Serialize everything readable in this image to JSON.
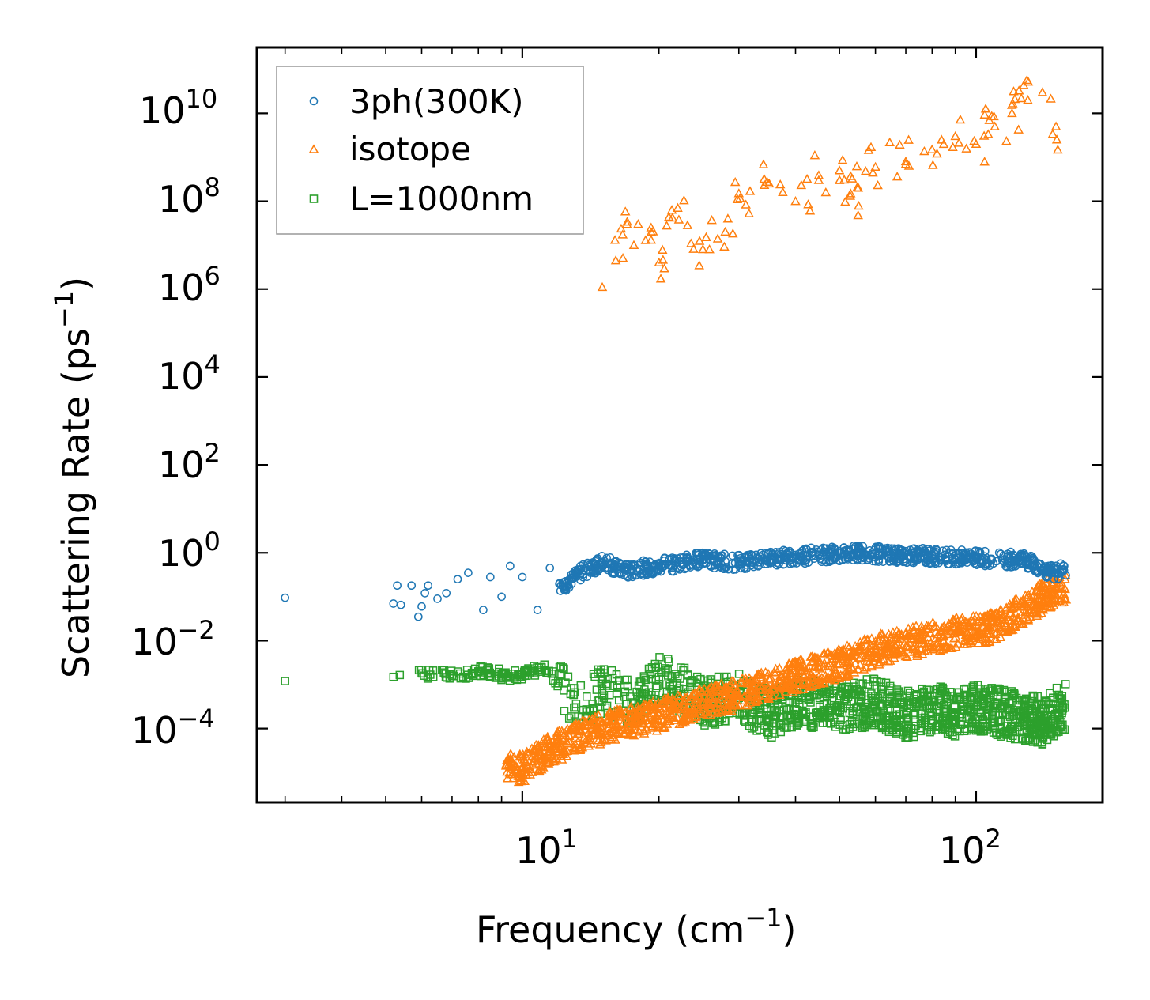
{
  "chart_data": {
    "type": "scatter",
    "xscale": "log",
    "yscale": "log",
    "xlabel": "Frequency (cm",
    "xlabel_sup": "−1",
    "xlabel_close": ")",
    "ylabel": "Scattering Rate (ps",
    "ylabel_sup": "−1",
    "ylabel_close": ")",
    "xlim": [
      2.6,
      190
    ],
    "ylim_exp": [
      -5.68,
      11.5
    ],
    "x_tick_labels": [
      {
        "base": "10",
        "exp": "1",
        "value": 10
      },
      {
        "base": "10",
        "exp": "2",
        "value": 100
      }
    ],
    "y_tick_labels": [
      {
        "base": "10",
        "exp": "10",
        "value": 10
      },
      {
        "base": "10",
        "exp": "8",
        "value": 8
      },
      {
        "base": "10",
        "exp": "6",
        "value": 6
      },
      {
        "base": "10",
        "exp": "4",
        "value": 4
      },
      {
        "base": "10",
        "exp": "2",
        "value": 2
      },
      {
        "base": "10",
        "exp": "0",
        "value": 0
      },
      {
        "base": "10",
        "exp": "−2",
        "value": -2
      },
      {
        "base": "10",
        "exp": "−4",
        "value": -4
      }
    ],
    "legend_position": "upper-left",
    "series": [
      {
        "name": "3ph(300K)",
        "marker": "circle",
        "color": "#1f77b4",
        "points": [
          [
            3.0,
            0.095
          ],
          [
            5.2,
            0.07
          ],
          [
            5.3,
            0.18
          ],
          [
            5.4,
            0.065
          ],
          [
            5.7,
            0.18
          ],
          [
            5.9,
            0.035
          ],
          [
            6.0,
            0.06
          ],
          [
            6.1,
            0.12
          ],
          [
            6.2,
            0.18
          ],
          [
            6.5,
            0.09
          ],
          [
            6.8,
            0.12
          ],
          [
            7.2,
            0.25
          ],
          [
            7.6,
            0.35
          ],
          [
            8.2,
            0.05
          ],
          [
            8.5,
            0.28
          ],
          [
            9.0,
            0.1
          ],
          [
            9.4,
            0.5
          ],
          [
            10.0,
            0.28
          ],
          [
            10.8,
            0.05
          ],
          [
            11.5,
            0.45
          ],
          [
            12.5,
            0.2
          ],
          [
            13.5,
            0.35
          ],
          [
            15.0,
            0.6
          ],
          [
            17.0,
            0.4
          ],
          [
            20.0,
            0.5
          ],
          [
            25.0,
            0.7
          ],
          [
            30.0,
            0.6
          ],
          [
            38.0,
            0.8
          ],
          [
            45.0,
            0.9
          ],
          [
            55.0,
            1.0
          ],
          [
            65.0,
            0.9
          ],
          [
            80.0,
            0.85
          ],
          [
            100.0,
            0.75
          ],
          [
            120.0,
            0.7
          ],
          [
            130.0,
            0.65
          ],
          [
            145.0,
            0.35
          ],
          [
            155.0,
            0.4
          ]
        ]
      },
      {
        "name": "isotope",
        "marker": "triangle",
        "color": "#ff7f0e",
        "points": [
          [
            9.2,
            1.5e-05
          ],
          [
            10.0,
            1.3e-05
          ],
          [
            11.0,
            2.5e-05
          ],
          [
            12.0,
            4e-05
          ],
          [
            14.0,
            8e-05
          ],
          [
            16.0,
            0.00012
          ],
          [
            18.0,
            0.00015
          ],
          [
            20.0,
            0.0002
          ],
          [
            25.0,
            0.0004
          ],
          [
            30.0,
            0.0006
          ],
          [
            40.0,
            0.0015
          ],
          [
            50.0,
            0.003
          ],
          [
            60.0,
            0.006
          ],
          [
            75.0,
            0.01
          ],
          [
            90.0,
            0.015
          ],
          [
            110.0,
            0.02
          ],
          [
            130.0,
            0.06
          ],
          [
            150.0,
            0.15
          ],
          [
            15.0,
            1100000.0
          ],
          [
            16.0,
            13000000.0
          ],
          [
            18.0,
            30000000.0
          ],
          [
            20.0,
            4000000.0
          ],
          [
            22.0,
            70000000.0
          ],
          [
            25.0,
            8000000.0
          ],
          [
            28.0,
            20000000.0
          ],
          [
            30.0,
            150000000.0
          ],
          [
            35.0,
            250000000.0
          ],
          [
            40.0,
            100000000.0
          ],
          [
            45.0,
            300000000.0
          ],
          [
            50.0,
            500000000.0
          ],
          [
            55.0,
            200000000.0
          ],
          [
            60.0,
            600000000.0
          ],
          [
            70.0,
            800000000.0
          ],
          [
            80.0,
            1500000000.0
          ],
          [
            90.0,
            3000000000.0
          ],
          [
            100.0,
            2000000000.0
          ],
          [
            110.0,
            5000000000.0
          ],
          [
            120.0,
            10000000000.0
          ],
          [
            130.0,
            20000000000.0
          ],
          [
            140.0,
            30000000000.0
          ],
          [
            150.0,
            5000000000.0
          ]
        ]
      },
      {
        "name": "L=1000nm",
        "marker": "square",
        "color": "#2ca02c",
        "points": [
          [
            3.0,
            0.0012
          ],
          [
            5.2,
            0.0015
          ],
          [
            6.0,
            0.0018
          ],
          [
            7.0,
            0.0016
          ],
          [
            8.0,
            0.002
          ],
          [
            9.0,
            0.0017
          ],
          [
            10.0,
            0.0015
          ],
          [
            11.0,
            0.0025
          ],
          [
            12.0,
            0.0012
          ],
          [
            13.0,
            0.0003
          ],
          [
            15.0,
            0.0008
          ],
          [
            18.0,
            0.0003
          ],
          [
            20.0,
            0.0015
          ],
          [
            25.0,
            0.0004
          ],
          [
            30.0,
            0.0005
          ],
          [
            35.0,
            0.0002
          ],
          [
            40.0,
            0.0004
          ],
          [
            50.0,
            0.0003
          ],
          [
            60.0,
            0.0004
          ],
          [
            70.0,
            0.0002
          ],
          [
            80.0,
            0.0003
          ],
          [
            90.0,
            0.0002
          ],
          [
            100.0,
            0.0003
          ],
          [
            120.0,
            0.0002
          ],
          [
            140.0,
            0.00015
          ],
          [
            155.0,
            0.0003
          ]
        ]
      }
    ]
  }
}
